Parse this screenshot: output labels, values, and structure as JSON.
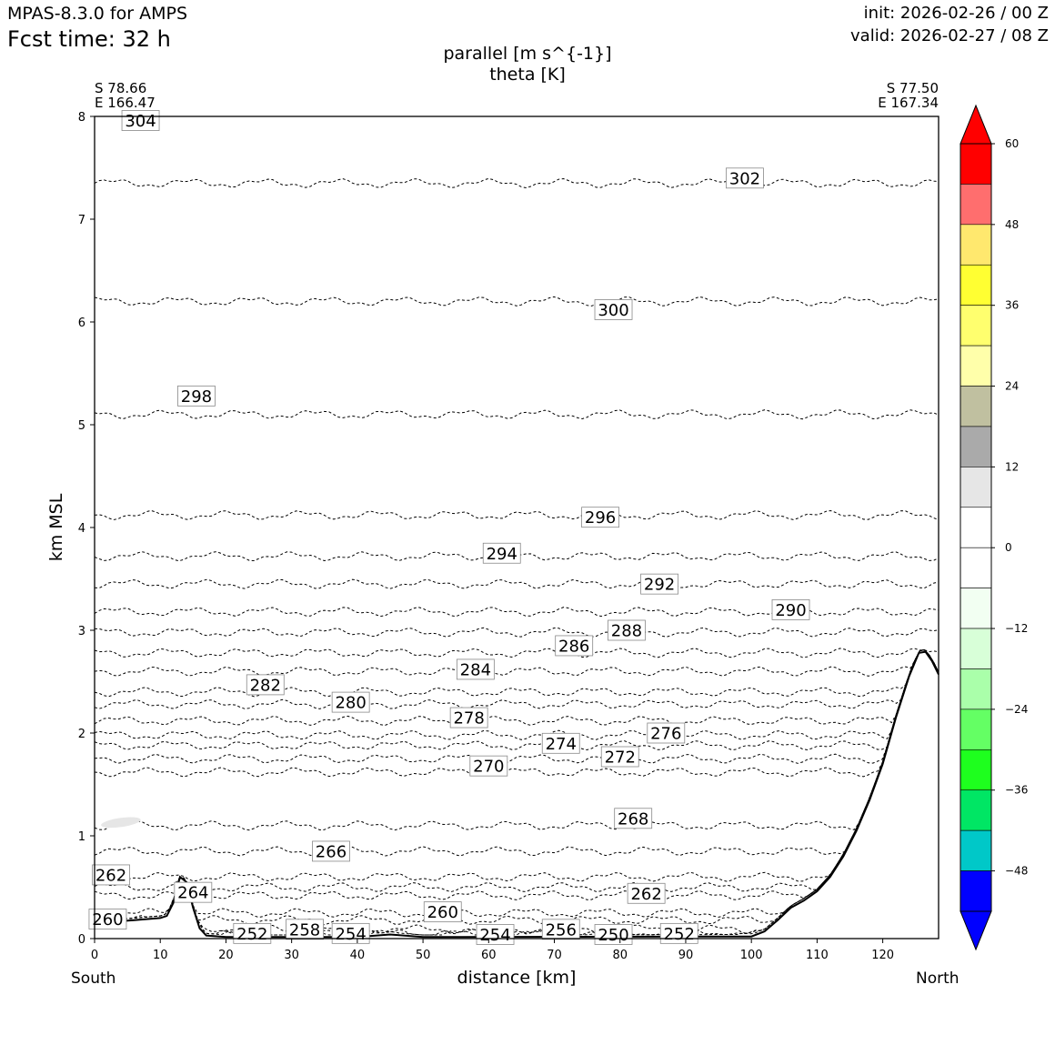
{
  "header": {
    "model": "MPAS-8.3.0 for AMPS",
    "fcst_time": "Fcst time:   32 h",
    "init": "init: 2026-02-26 / 00 Z",
    "valid": "valid: 2026-02-27 / 08 Z"
  },
  "chart_data": {
    "type": "cross-section contour",
    "title": [
      "parallel [m s^{-1}]",
      "theta [K]"
    ],
    "xlabel": "distance [km]",
    "ylabel": "km MSL",
    "xlim": [
      0,
      128.5
    ],
    "ylim": [
      0,
      8
    ],
    "x_ticks": [
      "0",
      "10",
      "20",
      "30",
      "40",
      "50",
      "60",
      "70",
      "80",
      "90",
      "100",
      "110",
      "120"
    ],
    "y_ticks": [
      "0",
      "1",
      "2",
      "3",
      "4",
      "5",
      "6",
      "7",
      "8"
    ],
    "x_end_labels": {
      "left": "South",
      "right": "North"
    },
    "endpoints": {
      "left": [
        "S 78.66",
        "E 166.47"
      ],
      "right": [
        "S 77.50",
        "E 167.34"
      ]
    },
    "terrain": [
      [
        0,
        0.15
      ],
      [
        6,
        0.18
      ],
      [
        10,
        0.2
      ],
      [
        11,
        0.22
      ],
      [
        12,
        0.35
      ],
      [
        13,
        0.6
      ],
      [
        14,
        0.55
      ],
      [
        15,
        0.3
      ],
      [
        16,
        0.1
      ],
      [
        17,
        0.03
      ],
      [
        20,
        0.015
      ],
      [
        40,
        0.015
      ],
      [
        45,
        0.04
      ],
      [
        50,
        0.015
      ],
      [
        100,
        0.02
      ],
      [
        102,
        0.07
      ],
      [
        104,
        0.18
      ],
      [
        106,
        0.3
      ],
      [
        108,
        0.37
      ],
      [
        110,
        0.46
      ],
      [
        112,
        0.6
      ],
      [
        114,
        0.8
      ],
      [
        116,
        1.05
      ],
      [
        118,
        1.35
      ],
      [
        120,
        1.7
      ],
      [
        122,
        2.15
      ],
      [
        124,
        2.55
      ],
      [
        125.5,
        2.78
      ],
      [
        126.5,
        2.79
      ],
      [
        127.5,
        2.7
      ],
      [
        128.5,
        2.57
      ]
    ],
    "theta_contours": [
      {
        "level": "302",
        "height": 7.35,
        "label_x": 99,
        "label_y": 7.4
      },
      {
        "level": "300",
        "height": 6.2,
        "label_x": 79,
        "label_y": 6.12
      },
      {
        "level": "298",
        "height": 5.1,
        "label_x": 15.5,
        "label_y": 5.28
      },
      {
        "level": "296",
        "height": 4.12,
        "label_x": 77,
        "label_y": 4.1
      },
      {
        "level": "294",
        "height": 3.72,
        "label_x": 62,
        "label_y": 3.75
      },
      {
        "level": "292",
        "height": 3.45,
        "label_x": 86,
        "label_y": 3.45
      },
      {
        "level": "290",
        "height": 3.18,
        "label_x": 106,
        "label_y": 3.2
      },
      {
        "level": "288",
        "height": 2.98,
        "label_x": 81,
        "label_y": 3.0
      },
      {
        "level": "286",
        "height": 2.78,
        "label_x": 73,
        "label_y": 2.85
      },
      {
        "level": "284",
        "height": 2.6,
        "label_x": 58,
        "label_y": 2.62
      },
      {
        "level": "282",
        "height": 2.4,
        "label_x": 26,
        "label_y": 2.47
      },
      {
        "level": "280",
        "height": 2.28,
        "label_x": 39,
        "label_y": 2.3
      },
      {
        "level": "278",
        "height": 2.12,
        "label_x": 57,
        "label_y": 2.15
      },
      {
        "level": "276",
        "height": 1.98,
        "label_x": 87,
        "label_y": 2.0
      },
      {
        "level": "274",
        "height": 1.88,
        "label_x": 71,
        "label_y": 1.9
      },
      {
        "level": "272",
        "height": 1.75,
        "label_x": 80,
        "label_y": 1.77
      },
      {
        "level": "270",
        "height": 1.62,
        "label_x": 60,
        "label_y": 1.68
      },
      {
        "level": "268",
        "height": 1.1,
        "label_x": 82,
        "label_y": 1.17
      },
      {
        "level": "266",
        "height": 0.85,
        "label_x": 36,
        "label_y": 0.85
      },
      {
        "level": "264",
        "height": 0.5,
        "label_x": 15,
        "label_y": 0.45
      },
      {
        "level": "262",
        "height": 0.42,
        "label_x": 84,
        "label_y": 0.44
      },
      {
        "level": "262",
        "height": 0.6,
        "label_x": 2.5,
        "label_y": 0.62
      },
      {
        "level": "260",
        "height": 0.25,
        "label_x": 53,
        "label_y": 0.26
      },
      {
        "level": "260",
        "height": 0.18,
        "label_x": 2,
        "label_y": 0.19
      },
      {
        "level": "304",
        "height": 8.0,
        "label_x": 7,
        "label_y": 7.96
      },
      {
        "level": "258",
        "height": 0.09,
        "label_x": 32,
        "label_y": 0.09
      },
      {
        "level": "256",
        "height": 0.09,
        "label_x": 71,
        "label_y": 0.09
      },
      {
        "level": "254",
        "height": 0.05,
        "label_x": 39,
        "label_y": 0.05
      },
      {
        "level": "254",
        "height": 0.04,
        "label_x": 61,
        "label_y": 0.04
      },
      {
        "level": "252",
        "height": 0.05,
        "label_x": 24,
        "label_y": 0.05
      },
      {
        "level": "252",
        "height": 0.05,
        "label_x": 89,
        "label_y": 0.05
      },
      {
        "level": "250",
        "height": 0.04,
        "label_x": 79,
        "label_y": 0.04
      }
    ],
    "colorbar": {
      "ticks": [
        "60",
        "48",
        "36",
        "24",
        "12",
        "0",
        "−12",
        "−24",
        "−36",
        "−48"
      ],
      "tick_values": [
        60,
        48,
        36,
        24,
        12,
        0,
        -12,
        -24,
        -36,
        -48
      ],
      "range": [
        -54,
        60
      ],
      "extend": "both",
      "bins": [
        {
          "from": 54,
          "to": 60,
          "color": "#ff0000"
        },
        {
          "from": 48,
          "to": 54,
          "color": "#ff6e6e"
        },
        {
          "from": 42,
          "to": 48,
          "color": "#ffe86e"
        },
        {
          "from": 36,
          "to": 42,
          "color": "#ffff32"
        },
        {
          "from": 30,
          "to": 36,
          "color": "#ffff6e"
        },
        {
          "from": 24,
          "to": 30,
          "color": "#ffffaa"
        },
        {
          "from": 18,
          "to": 24,
          "color": "#c0c0a0"
        },
        {
          "from": 12,
          "to": 18,
          "color": "#aaaaaa"
        },
        {
          "from": 6,
          "to": 12,
          "color": "#e6e6e6"
        },
        {
          "from": 0,
          "to": 6,
          "color": "#ffffff"
        },
        {
          "from": -6,
          "to": 0,
          "color": "#ffffff"
        },
        {
          "from": -12,
          "to": -6,
          "color": "#f2fff2"
        },
        {
          "from": -18,
          "to": -12,
          "color": "#d8ffd8"
        },
        {
          "from": -24,
          "to": -18,
          "color": "#aaffaa"
        },
        {
          "from": -30,
          "to": -24,
          "color": "#64ff64"
        },
        {
          "from": -36,
          "to": -30,
          "color": "#1eff1e"
        },
        {
          "from": -42,
          "to": -36,
          "color": "#00e664"
        },
        {
          "from": -48,
          "to": -42,
          "color": "#00c8c8"
        },
        {
          "from": -54,
          "to": -48,
          "color": "#0000ff"
        }
      ],
      "over_color": "#ff0000",
      "under_color": "#0000ff"
    }
  }
}
